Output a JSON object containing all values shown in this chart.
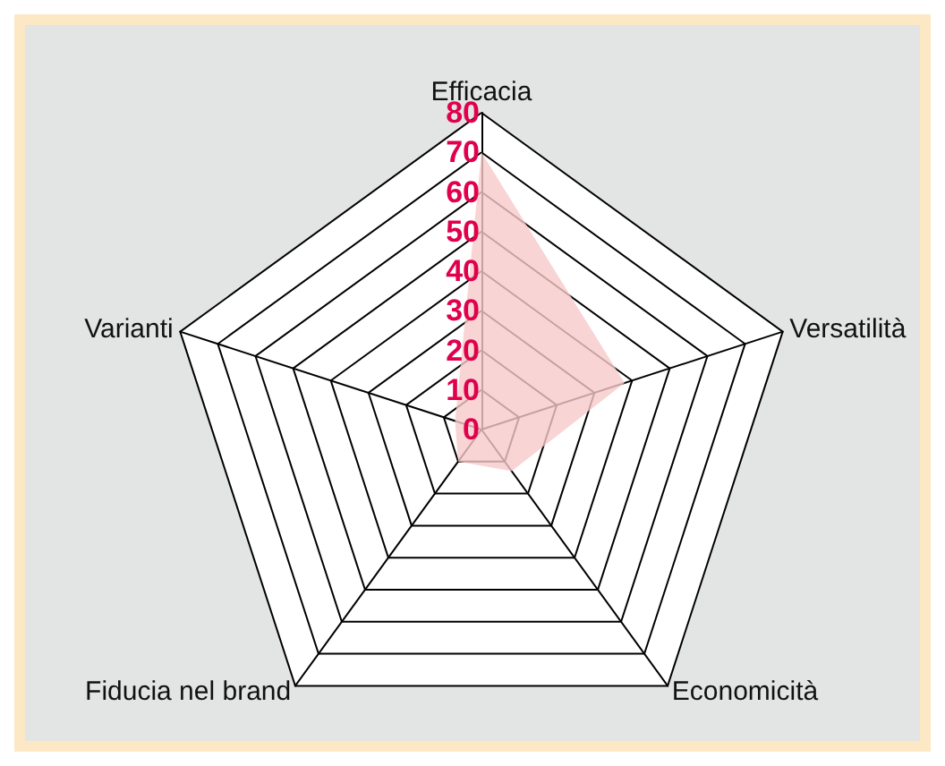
{
  "chart_data": {
    "type": "radar",
    "categories": [
      "Efficacia",
      "Versatilità",
      "Economicità",
      "Fiducia nel brand",
      "Varianti"
    ],
    "series": [
      {
        "color": "#f7c9c9",
        "values": [
          70,
          38,
          13,
          10,
          7
        ]
      }
    ],
    "ylim": [
      0,
      80
    ],
    "yticks": [
      0,
      10,
      20,
      30,
      40,
      50,
      60,
      70,
      80
    ],
    "grid": true
  }
}
